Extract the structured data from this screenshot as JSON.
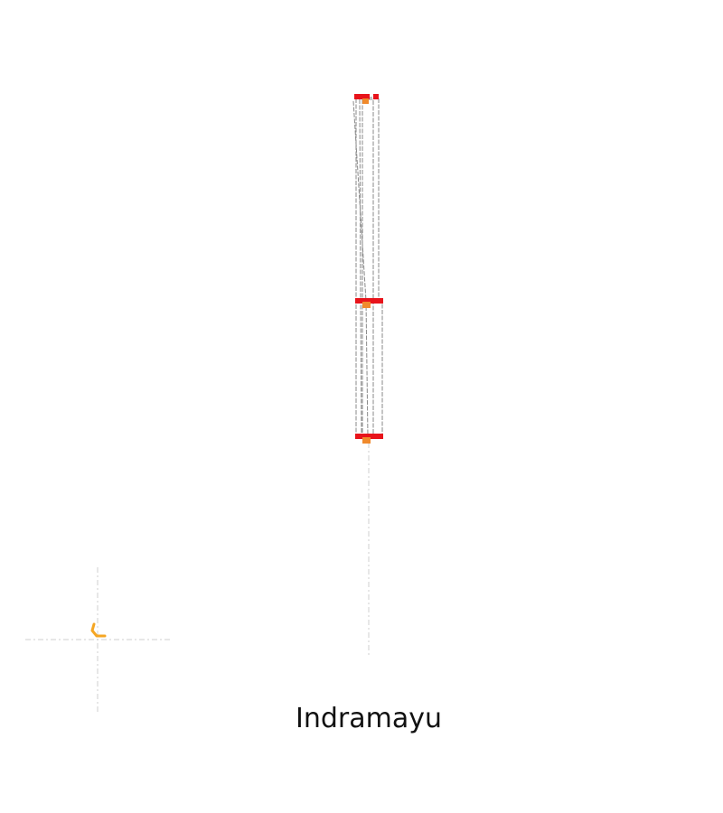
{
  "map": {
    "place_name": "Indramayu",
    "colors": {
      "route": "#8a8a8a",
      "stop_bar": "#e8141b",
      "stop_marker": "#f08a2c",
      "guide": "#cfcfcf",
      "compass_marker": "#f5a623"
    }
  }
}
